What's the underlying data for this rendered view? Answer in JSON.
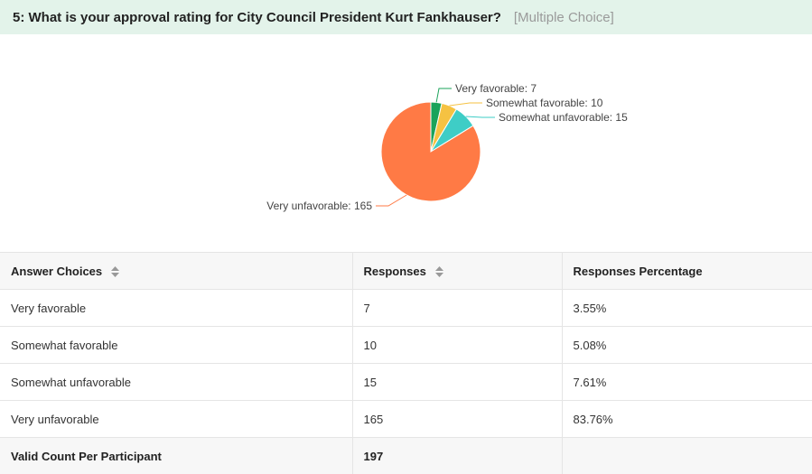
{
  "question": {
    "title": "5: What is your approval rating for City Council President Kurt Fankhauser?",
    "type": "[Multiple Choice]"
  },
  "chart_data": {
    "type": "pie",
    "categories": [
      "Very favorable",
      "Somewhat favorable",
      "Somewhat unfavorable",
      "Very unfavorable"
    ],
    "values": [
      7,
      10,
      15,
      165
    ],
    "labels": [
      "Very favorable: 7",
      "Somewhat favorable: 10",
      "Somewhat unfavorable: 15",
      "Very unfavorable: 165"
    ],
    "colors": [
      "#1aa35a",
      "#f5c242",
      "#3ecdc6",
      "#ff7a45"
    ]
  },
  "table": {
    "headers": {
      "choice": "Answer Choices",
      "responses": "Responses",
      "percentage": "Responses Percentage"
    },
    "rows": [
      {
        "choice": "Very favorable",
        "responses": "7",
        "percentage": "3.55%"
      },
      {
        "choice": "Somewhat favorable",
        "responses": "10",
        "percentage": "5.08%"
      },
      {
        "choice": "Somewhat unfavorable",
        "responses": "15",
        "percentage": "7.61%"
      },
      {
        "choice": "Very unfavorable",
        "responses": "165",
        "percentage": "83.76%"
      }
    ],
    "footer": {
      "label": "Valid Count Per Participant",
      "total": "197"
    }
  },
  "icons": {
    "sort": "sort-icon"
  }
}
